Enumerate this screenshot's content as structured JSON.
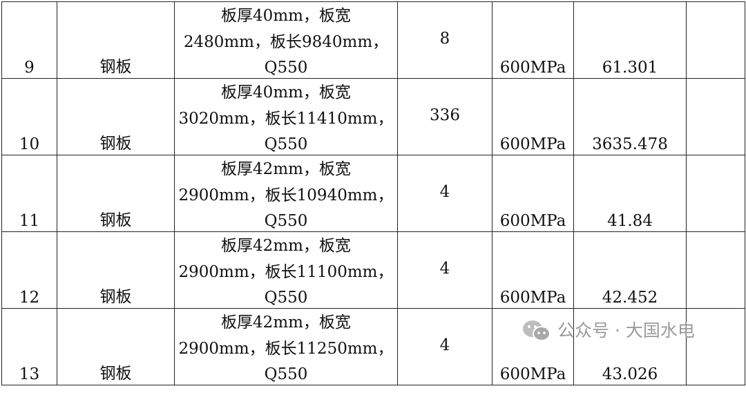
{
  "rows": [
    {
      "no": "9",
      "name": "钢板",
      "spec": [
        "板厚40mm，板宽",
        "2480mm，板长9840mm，",
        "Q550"
      ],
      "qty": "8",
      "strength": "600MPa",
      "weight": "61.301",
      "note": ""
    },
    {
      "no": "10",
      "name": "钢板",
      "spec": [
        "板厚40mm，板宽",
        "3020mm，板长11410mm，",
        "Q550"
      ],
      "qty": "336",
      "strength": "600MPa",
      "weight": "3635.478",
      "note": ""
    },
    {
      "no": "11",
      "name": "钢板",
      "spec": [
        "板厚42mm，板宽",
        "2900mm，板长10940mm，",
        "Q550"
      ],
      "qty": "4",
      "strength": "600MPa",
      "weight": "41.84",
      "note": ""
    },
    {
      "no": "12",
      "name": "钢板",
      "spec": [
        "板厚42mm，板宽",
        "2900mm，板长11100mm，",
        "Q550"
      ],
      "qty": "4",
      "strength": "600MPa",
      "weight": "42.452",
      "note": ""
    },
    {
      "no": "13",
      "name": "钢板",
      "spec": [
        "板厚42mm，板宽",
        "2900mm，板长11250mm，",
        "Q550"
      ],
      "qty": "4",
      "strength": "600MPa",
      "weight": "43.026",
      "note": ""
    }
  ],
  "watermark": {
    "text": "公众号 · 大国水电",
    "icon": "wechat-icon"
  }
}
